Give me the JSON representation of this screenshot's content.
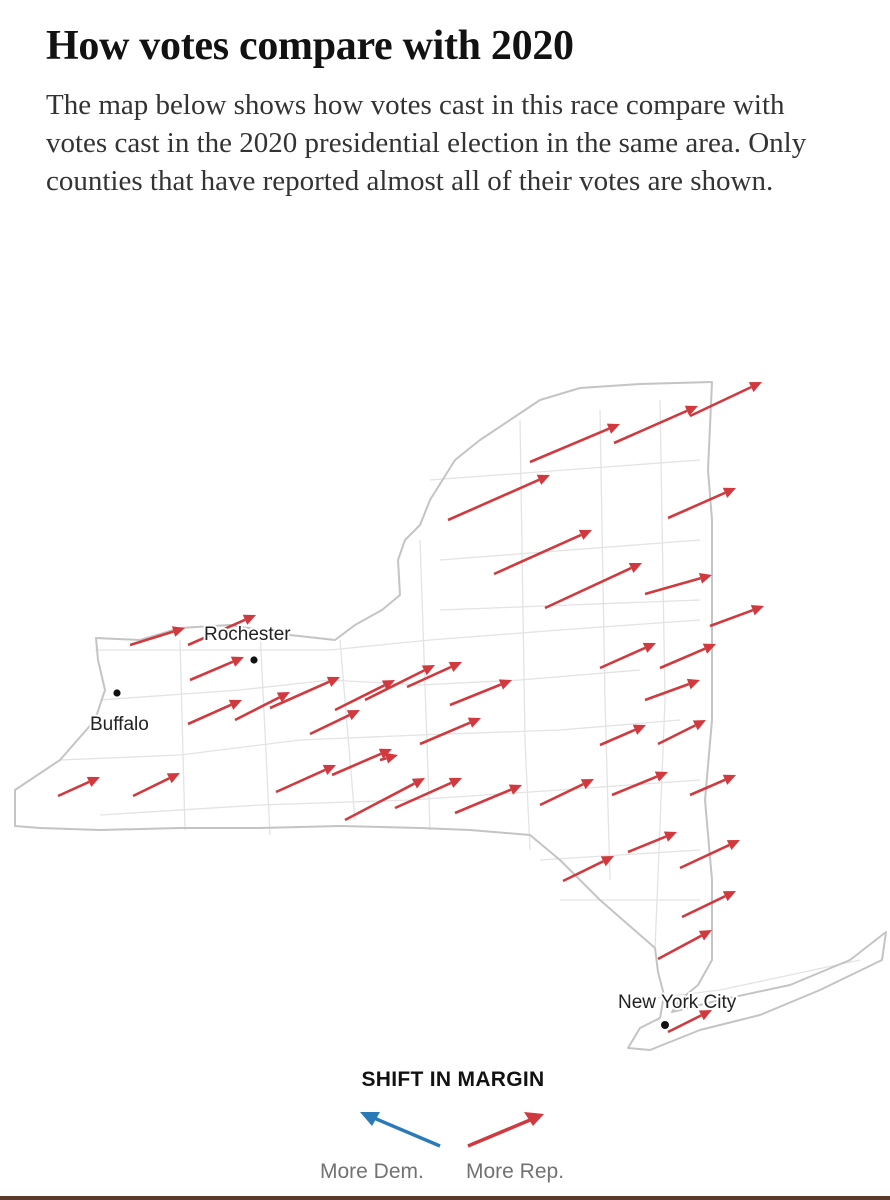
{
  "title": "How votes compare with 2020",
  "description": "The map below shows how votes cast in this race compare with votes cast in the 2020 presidential election in the same area. Only counties that have reported almost all of their votes are shown.",
  "cities": [
    {
      "name": "Rochester"
    },
    {
      "name": "Buffalo"
    },
    {
      "name": "New York City"
    }
  ],
  "legend": {
    "title": "SHIFT IN MARGIN",
    "dem_label": "More Dem.",
    "rep_label": "More Rep.",
    "dem_color": "#2a7ab8",
    "rep_color": "#d03a3f"
  },
  "colors": {
    "map_outline": "#c4c4c4",
    "county_lines": "#e3e3e3",
    "arrow": "#d03a3f"
  },
  "shift_direction": "More Rep."
}
